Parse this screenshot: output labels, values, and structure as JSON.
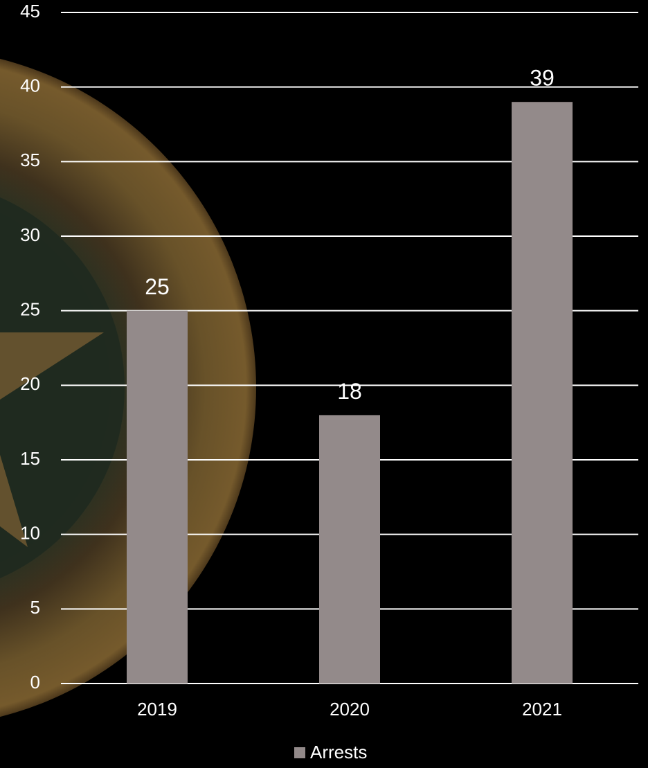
{
  "chart_data": {
    "type": "bar",
    "categories": [
      "2019",
      "2020",
      "2021"
    ],
    "series": [
      {
        "name": "Arrests",
        "color": "#938a8a",
        "values": [
          25,
          18,
          39
        ]
      }
    ],
    "ylim": [
      0,
      45
    ],
    "yticks": [
      0,
      5,
      10,
      15,
      20,
      25,
      30,
      35,
      40,
      45
    ],
    "grid": true,
    "legend": "bottom",
    "data_labels": true
  }
}
